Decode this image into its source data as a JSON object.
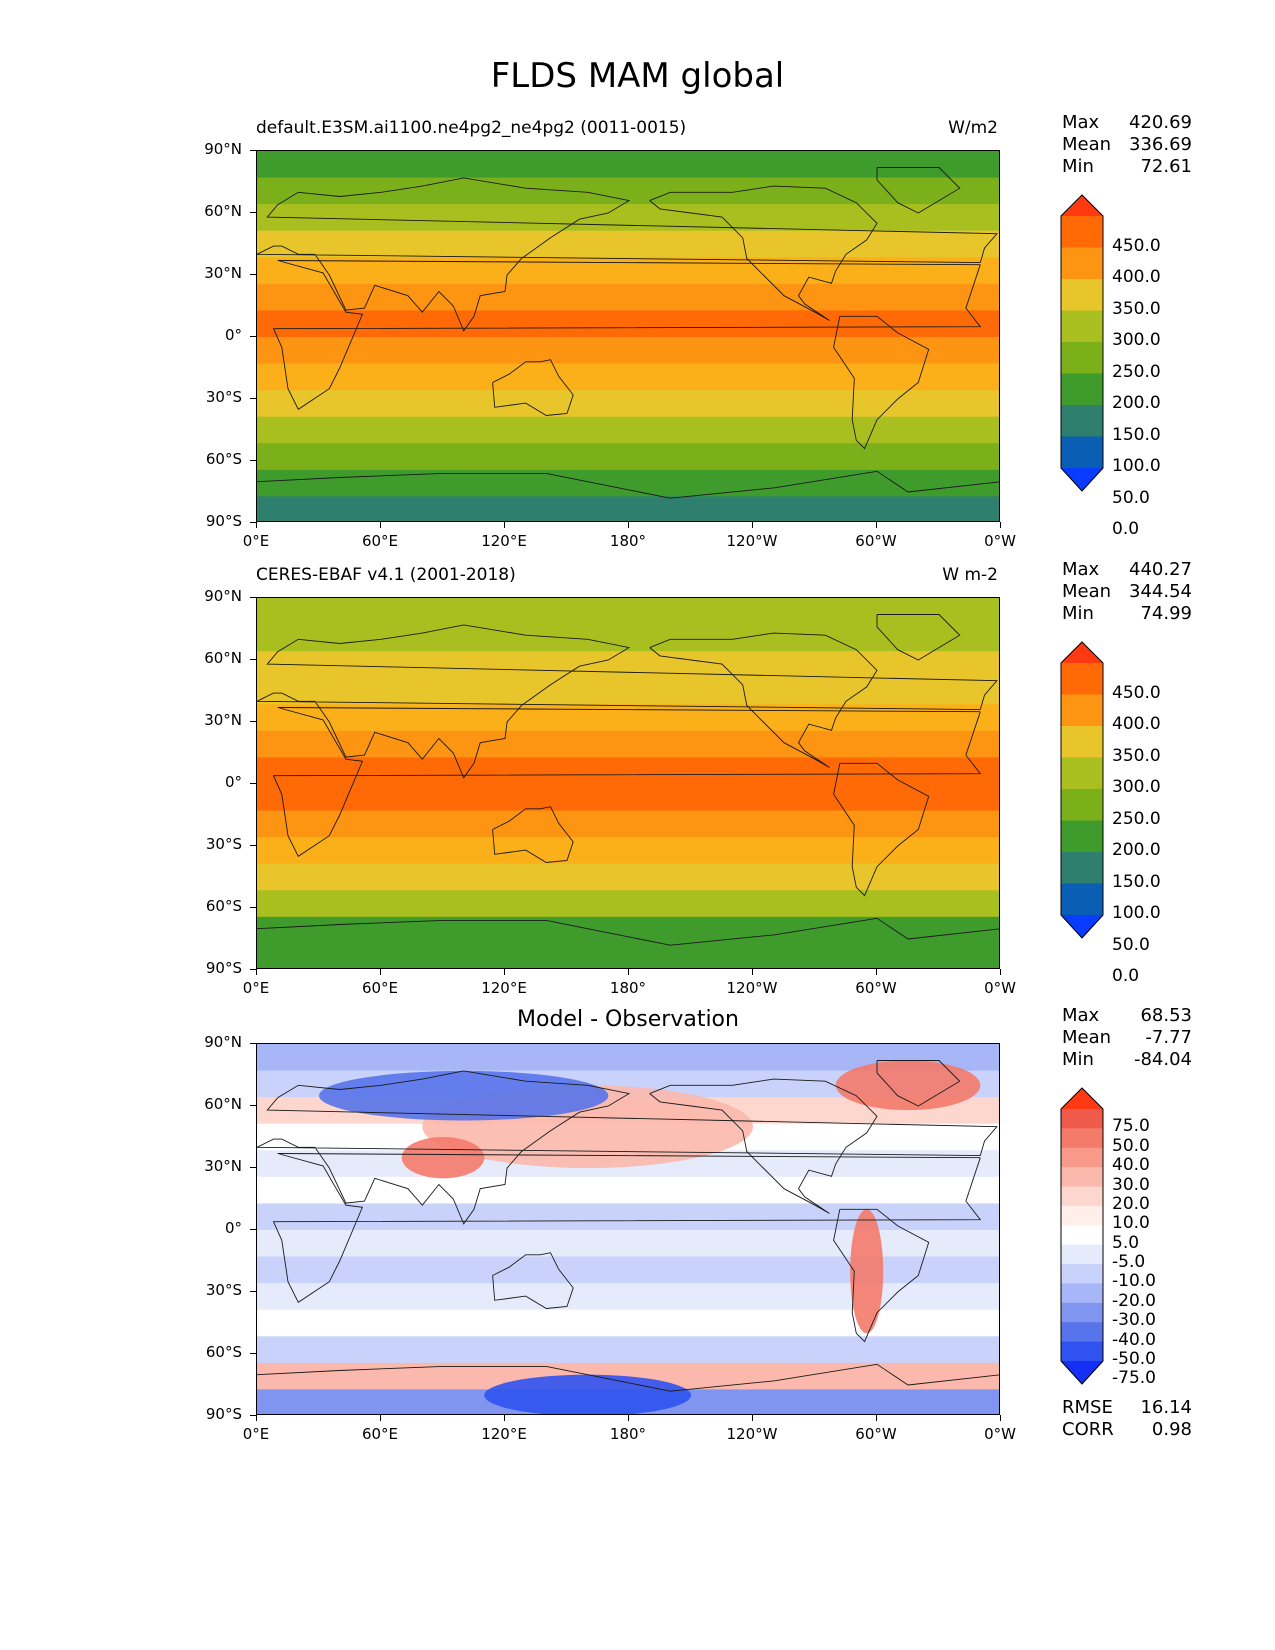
{
  "title": "FLDS MAM global",
  "lat_labels": [
    "90°N",
    "60°N",
    "30°N",
    "0°",
    "30°S",
    "60°S",
    "90°S"
  ],
  "lon_labels": [
    "0°E",
    "60°E",
    "120°E",
    "180°",
    "120°W",
    "60°W",
    "0°W"
  ],
  "panels": [
    {
      "title": "default.E3SM.ai1100.ne4pg2_ne4pg2 (0011-0015)",
      "units": "W/m2",
      "center_title": "",
      "stats": [
        {
          "label": "Max",
          "value": "420.69"
        },
        {
          "label": "Mean",
          "value": "336.69"
        },
        {
          "label": "Min",
          "value": "72.61"
        }
      ],
      "colorbar_labels": [
        "450.0",
        "400.0",
        "350.0",
        "300.0",
        "250.0",
        "200.0",
        "150.0",
        "100.0",
        "50.0",
        "0.0"
      ],
      "colorbar_colors": [
        "#ff3a12",
        "#ff6a06",
        "#fd9512",
        "#e8c52a",
        "#a8bf1f",
        "#7cb01a",
        "#3e9b2c",
        "#2f7f6e",
        "#0a5fb4",
        "#0a3cff"
      ],
      "bands_by_lat": [
        "#3e9b2c",
        "#7cb01a",
        "#a8bf1f",
        "#e8c52a",
        "#fbb019",
        "#fd9512",
        "#ff6a06",
        "#fd9512",
        "#fbb019",
        "#e8c52a",
        "#a8bf1f",
        "#7cb01a",
        "#3e9b2c",
        "#2f7f6e"
      ],
      "extra": []
    },
    {
      "title": "CERES-EBAF v4.1 (2001-2018)",
      "units": "W m-2",
      "center_title": "",
      "stats": [
        {
          "label": "Max",
          "value": "440.27"
        },
        {
          "label": "Mean",
          "value": "344.54"
        },
        {
          "label": "Min",
          "value": "74.99"
        }
      ],
      "colorbar_labels": [
        "450.0",
        "400.0",
        "350.0",
        "300.0",
        "250.0",
        "200.0",
        "150.0",
        "100.0",
        "50.0",
        "0.0"
      ],
      "colorbar_colors": [
        "#ff3a12",
        "#ff6a06",
        "#fd9512",
        "#e8c52a",
        "#a8bf1f",
        "#7cb01a",
        "#3e9b2c",
        "#2f7f6e",
        "#0a5fb4",
        "#0a3cff"
      ],
      "bands_by_lat": [
        "#a8bf1f",
        "#a8bf1f",
        "#e8c52a",
        "#e8c52a",
        "#fbb019",
        "#fd9512",
        "#ff6a06",
        "#ff6a06",
        "#fd9512",
        "#fbb019",
        "#e8c52a",
        "#a8bf1f",
        "#3e9b2c",
        "#3e9b2c"
      ],
      "extra": []
    },
    {
      "title": "",
      "units": "",
      "center_title": "Model - Observation",
      "stats": [
        {
          "label": "Max",
          "value": "68.53"
        },
        {
          "label": "Mean",
          "value": "-7.77"
        },
        {
          "label": "Min",
          "value": "-84.04"
        }
      ],
      "colorbar_labels": [
        "75.0",
        "50.0",
        "40.0",
        "30.0",
        "20.0",
        "10.0",
        "5.0",
        "-5.0",
        "-10.0",
        "-20.0",
        "-30.0",
        "-40.0",
        "-50.0",
        "-75.0"
      ],
      "colorbar_colors": [
        "#ff3a12",
        "#f05a4a",
        "#f47a6a",
        "#f79a8a",
        "#fbb8ac",
        "#fdd6ce",
        "#ffeeea",
        "#ffffff",
        "#e6ebfc",
        "#c8d2fa",
        "#a6b6f6",
        "#7f95f0",
        "#5874ea",
        "#2f52f0",
        "#1530f5"
      ],
      "bands_by_lat": [
        "#a6b6f6",
        "#c8d2fa",
        "#fdd6ce",
        "#ffffff",
        "#e6ebfc",
        "#ffffff",
        "#c8d2fa",
        "#e6ebfc",
        "#c8d2fa",
        "#e6ebfc",
        "#ffffff",
        "#c8d2fa",
        "#fbb8ac",
        "#7f95f0"
      ],
      "extra": [
        {
          "lat": 70,
          "lon": -45,
          "w": 35,
          "h": 12,
          "color": "#f47a6a"
        },
        {
          "lat": 50,
          "lon": 160,
          "w": 80,
          "h": 20,
          "color": "#fbb8ac"
        },
        {
          "lat": 35,
          "lon": 90,
          "w": 20,
          "h": 10,
          "color": "#f47a6a"
        },
        {
          "lat": -20,
          "lon": -65,
          "w": 8,
          "h": 30,
          "color": "#f47a6a"
        },
        {
          "lat": 65,
          "lon": 100,
          "w": 70,
          "h": 12,
          "color": "#5874ea"
        },
        {
          "lat": -80,
          "lon": 160,
          "w": 50,
          "h": 10,
          "color": "#2f52f0"
        }
      ],
      "bottom_stats": [
        {
          "label": "RMSE",
          "value": "16.14"
        },
        {
          "label": "CORR",
          "value": "0.98"
        }
      ]
    }
  ]
}
